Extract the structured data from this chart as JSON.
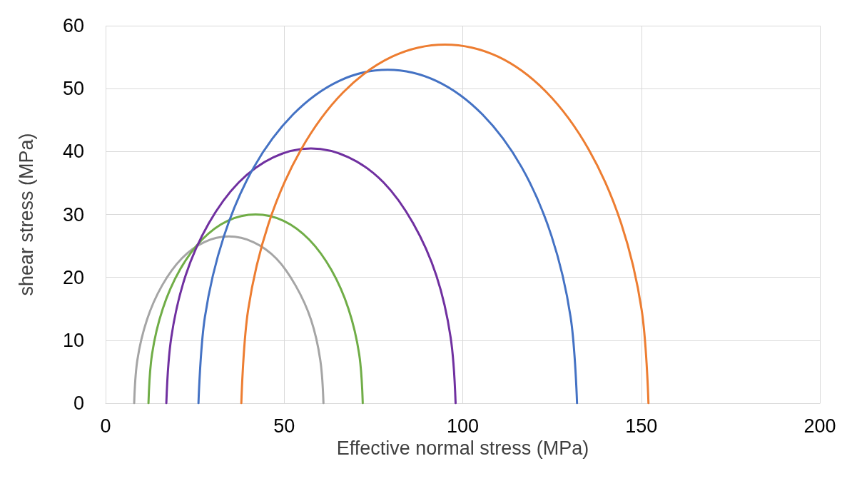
{
  "chart_data": {
    "type": "line",
    "xlabel": "Effective normal stress (MPa)",
    "ylabel": "shear stress (MPa)",
    "xlim": [
      0,
      200
    ],
    "xticks": [
      0,
      50,
      100,
      150,
      200
    ],
    "ylim": [
      0,
      60
    ],
    "yticks": [
      0,
      10,
      20,
      30,
      40,
      50,
      60
    ],
    "grid": true,
    "marker": "none",
    "line_style": "solid",
    "series": [
      {
        "color": "#a5a5a5",
        "x": [
          8,
          8.9,
          11.6,
          15.8,
          21.3,
          27.6,
          34.5,
          41.4,
          47.8,
          53.2,
          57.5,
          60.1,
          61
        ],
        "values": [
          0,
          6.9,
          13.3,
          18.7,
          23,
          25.6,
          26.5,
          25.6,
          23,
          18.7,
          13.3,
          6.9,
          0
        ]
      },
      {
        "color": "#70ad47",
        "x": [
          12,
          13,
          16,
          20.8,
          27,
          34.2,
          42,
          49.8,
          57,
          63.2,
          68,
          71,
          72
        ],
        "values": [
          0,
          7.8,
          15,
          21.2,
          26,
          29,
          30,
          29,
          26,
          21.2,
          15,
          7.8,
          0
        ]
      },
      {
        "color": "#7030a0",
        "x": [
          17,
          18.4,
          22.4,
          28.9,
          37.3,
          47,
          57.5,
          68,
          77.8,
          86.1,
          92.6,
          96.6,
          98
        ],
        "values": [
          0,
          10.5,
          20.3,
          28.6,
          35.1,
          39.1,
          40.5,
          39.1,
          35.1,
          28.6,
          20.3,
          10.5,
          0
        ]
      },
      {
        "color": "#4472c4",
        "x": [
          26,
          27.8,
          33.1,
          41.5,
          52.5,
          65.3,
          79,
          92.7,
          105.5,
          116.5,
          124.9,
          130.2,
          132
        ],
        "values": [
          0,
          13.7,
          26.5,
          37.5,
          45.9,
          51.2,
          53,
          51.2,
          45.9,
          37.5,
          26.5,
          13.7,
          0
        ]
      },
      {
        "color": "#ed7d31",
        "x": [
          38,
          39.9,
          45.6,
          54.7,
          66.5,
          80.3,
          95,
          109.8,
          123.5,
          135.3,
          144.4,
          150.1,
          152
        ],
        "values": [
          0,
          14.8,
          28.5,
          40.3,
          49.4,
          55.1,
          57,
          55.1,
          49.4,
          40.3,
          28.5,
          14.8,
          0
        ]
      }
    ]
  }
}
